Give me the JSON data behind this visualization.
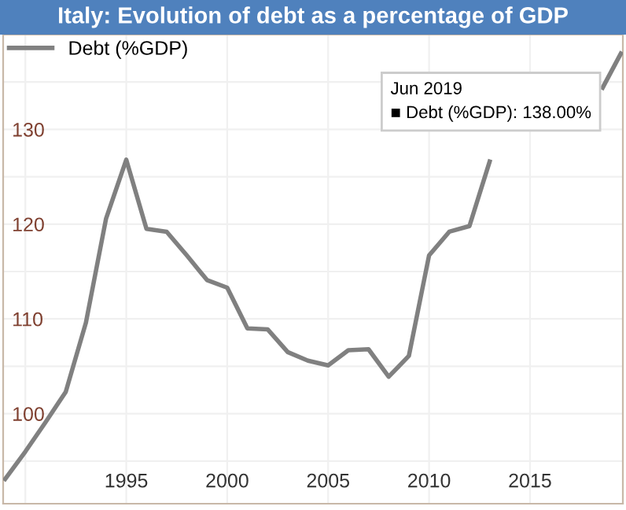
{
  "chart_data": {
    "type": "line",
    "title": "Italy: Evolution of debt as a percentage of GDP",
    "series": [
      {
        "name": "Debt (%GDP)",
        "color": "#808080",
        "x": [
          1989.0,
          1990.0,
          1991.0,
          1992.0,
          1993.0,
          1994.0,
          1995.0,
          1996.0,
          1997.0,
          1998.0,
          1999.0,
          2000.0,
          2001.0,
          2002.0,
          2003.0,
          2004.0,
          2005.0,
          2006.0,
          2007.0,
          2008.0,
          2009.0,
          2010.0,
          2011.0,
          2012.0,
          2013.0,
          2014.0,
          2018.0,
          2018.6,
          2019.5
        ],
        "values": [
          93.1,
          96.0,
          99.1,
          102.3,
          109.6,
          120.6,
          126.8,
          119.5,
          119.2,
          116.7,
          114.1,
          113.3,
          109.0,
          108.9,
          106.5,
          105.6,
          105.1,
          106.7,
          106.8,
          103.9,
          106.1,
          116.7,
          119.2,
          119.8,
          126.6,
          null,
          null,
          134.4,
          138.0
        ]
      }
    ],
    "xlim": [
      1988.9,
      2019.6
    ],
    "ylim": [
      90.5,
      140
    ],
    "xticks": [
      {
        "value": 1990,
        "label": null
      },
      1995,
      2000,
      2005,
      2010,
      2015
    ],
    "yticks": [
      {
        "value": 95,
        "label": null
      },
      100,
      {
        "value": 105,
        "label": null
      },
      110,
      {
        "value": 115,
        "label": null
      },
      120,
      {
        "value": 125,
        "label": null
      },
      130,
      {
        "value": 135,
        "label": null
      }
    ],
    "grid": true,
    "legend": "top left",
    "marker": "none",
    "line_style": "solid",
    "annotations": [
      "Jun 2019\n■ Debt (%GDP): 138.00%"
    ]
  }
}
